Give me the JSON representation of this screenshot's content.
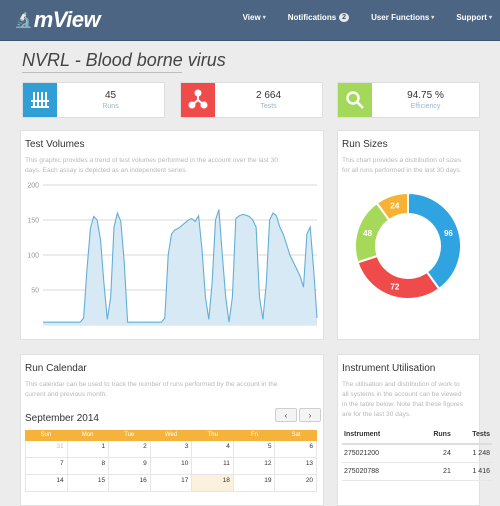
{
  "nav": {
    "brand": "mView",
    "items": [
      "View",
      "Notifications",
      "User Functions",
      "Support"
    ],
    "notifications_badge": "2"
  },
  "page": {
    "title": "NVRL - Blood borne virus"
  },
  "stats": [
    {
      "value": "45",
      "label": "Runs",
      "color": "#2f9fd6",
      "icon": "test-tubes-icon"
    },
    {
      "value": "2 664",
      "label": "Tests",
      "color": "#ef4b4b",
      "icon": "biohazard-icon"
    },
    {
      "value": "94.75 %",
      "label": "Efficiency",
      "color": "#a4d85a",
      "icon": "magnifier-icon"
    }
  ],
  "test_volumes": {
    "title": "Test Volumes",
    "description": [
      "This graphic provides a trend of test volumes performed in the account over the last 30",
      "days. Each assay is depicted as an independent series."
    ],
    "chart_data": {
      "type": "area",
      "y_ticks": [
        "200",
        "150",
        "100",
        "50"
      ],
      "ylim": [
        0,
        200
      ],
      "values": [
        4,
        4,
        4,
        4,
        4,
        4,
        4,
        4,
        4,
        4,
        4,
        4,
        10,
        80,
        138,
        155,
        150,
        122,
        60,
        8,
        40,
        140,
        160,
        148,
        90,
        4,
        4,
        4,
        4,
        4,
        4,
        4,
        4,
        4,
        4,
        4,
        10,
        100,
        130,
        136,
        138,
        142,
        146,
        150,
        152,
        148,
        156,
        108,
        40,
        8,
        60,
        150,
        165,
        100,
        40,
        4,
        40,
        152,
        156,
        158,
        157,
        155,
        150,
        140,
        40,
        8,
        60,
        150,
        160,
        156,
        140,
        130,
        115,
        100,
        90,
        80,
        70,
        54,
        130,
        140,
        80,
        10
      ],
      "color": "#63afd6",
      "fill": "#d6e9f5"
    }
  },
  "run_sizes": {
    "title": "Run Sizes",
    "description": [
      "This chart provides a distribution of sizes",
      "for all runs performed in the last 30 days."
    ],
    "chart_data": {
      "type": "pie",
      "slices": [
        {
          "label": "96",
          "value": 96,
          "color": "#2fa4e0"
        },
        {
          "label": "72",
          "value": 72,
          "color": "#ef4b4b"
        },
        {
          "label": "48",
          "value": 48,
          "color": "#a6d85a"
        },
        {
          "label": "24",
          "value": 24,
          "color": "#f7b234"
        }
      ]
    }
  },
  "run_calendar": {
    "title": "Run Calendar",
    "description": [
      "This calendar can be used to track the number of runs performed by the account in the",
      "current and previous month."
    ],
    "month": "September 2014",
    "prev": "‹",
    "next": "›",
    "days": [
      "Sun",
      "Mon",
      "Tue",
      "Wed",
      "Thu",
      "Fri",
      "Sat"
    ],
    "rows": [
      [
        "31",
        "1",
        "2",
        "3",
        "4",
        "5",
        "6"
      ],
      [
        "7",
        "8",
        "9",
        "10",
        "11",
        "12",
        "13"
      ],
      [
        "14",
        "15",
        "16",
        "17",
        "18",
        "19",
        "20"
      ]
    ]
  },
  "instrument_utilisation": {
    "title": "Instrument Utilisation",
    "description": [
      "The utilisation and distribution of work to",
      "all systems in the account can be viewed",
      "in the table below. Note that these figures",
      "are for the last 30 days."
    ],
    "headers": [
      "Instrument",
      "Runs",
      "Tests"
    ],
    "rows": [
      [
        "275021200",
        "24",
        "1 248"
      ],
      [
        "275020788",
        "21",
        "1 416"
      ]
    ]
  }
}
